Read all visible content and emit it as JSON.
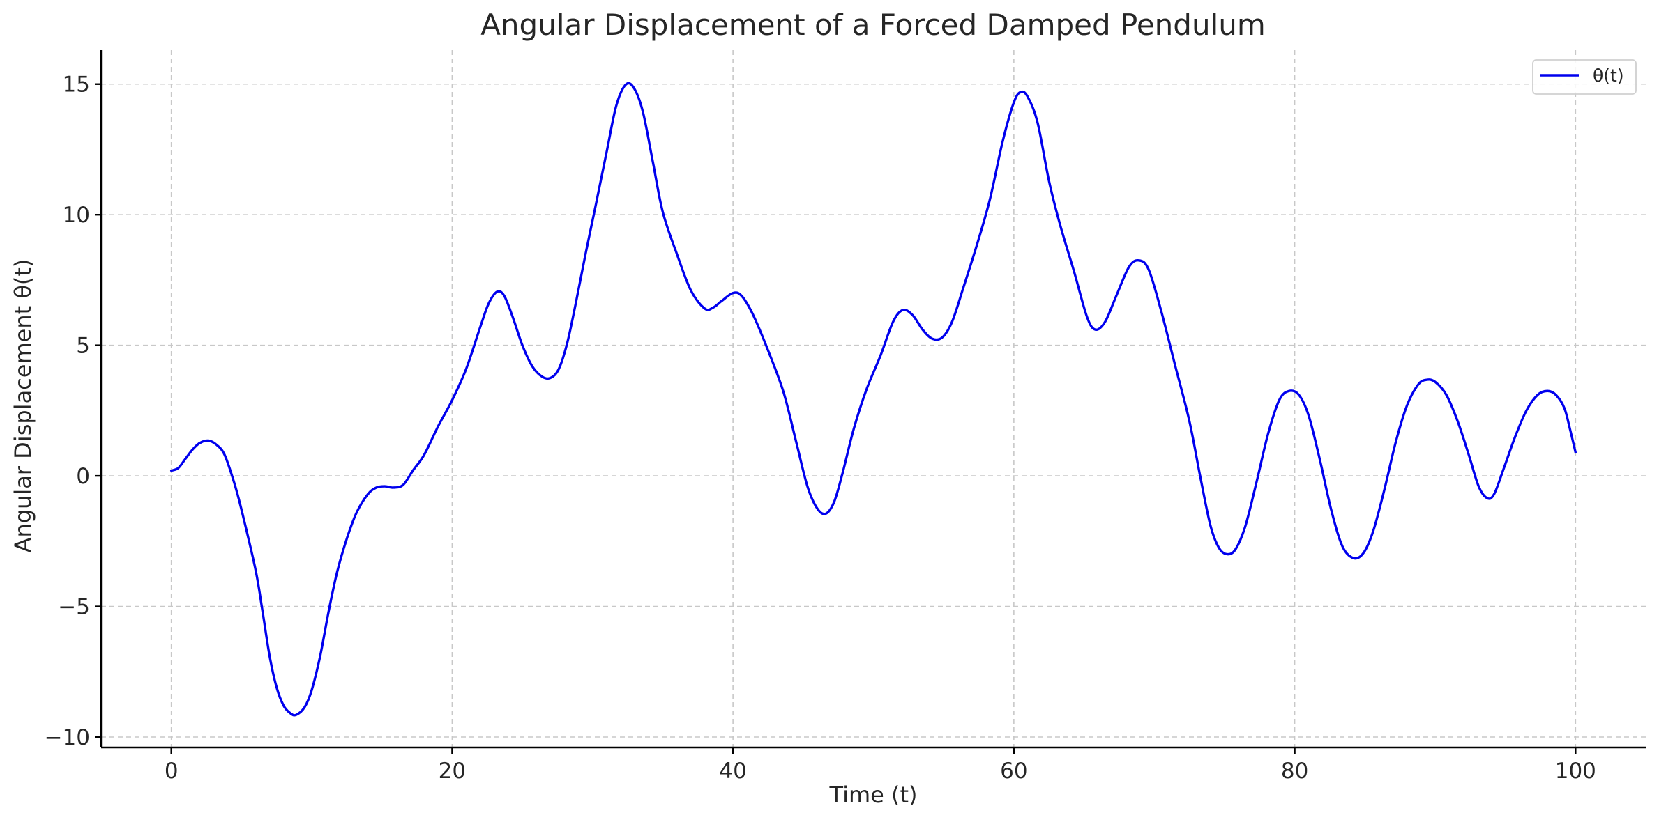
{
  "chart_data": {
    "type": "line",
    "title": "Angular Displacement of a Forced Damped Pendulum",
    "xlabel": "Time (t)",
    "ylabel": "Angular Displacement θ(t)",
    "xlim": [
      -5,
      105
    ],
    "ylim": [
      -10.4,
      16.3
    ],
    "xticks": [
      0,
      20,
      40,
      60,
      80,
      100
    ],
    "yticks": [
      -10,
      -5,
      0,
      5,
      10,
      15
    ],
    "xtick_labels": [
      "0",
      "20",
      "40",
      "60",
      "80",
      "100"
    ],
    "ytick_labels": [
      "−10",
      "−5",
      "0",
      "5",
      "10",
      "15"
    ],
    "grid": true,
    "legend": "top-right",
    "series": [
      {
        "name": "θ(t)",
        "color": "#0000ee",
        "points": [
          [
            0,
            0.2
          ],
          [
            0.5,
            0.3
          ],
          [
            1,
            0.65
          ],
          [
            1.5,
            1.0
          ],
          [
            2,
            1.25
          ],
          [
            2.6,
            1.35
          ],
          [
            3.2,
            1.2
          ],
          [
            3.8,
            0.8
          ],
          [
            4.5,
            -0.3
          ],
          [
            5,
            -1.3
          ],
          [
            6,
            -3.6
          ],
          [
            6.5,
            -5.2
          ],
          [
            7,
            -6.9
          ],
          [
            7.5,
            -8.1
          ],
          [
            8,
            -8.8
          ],
          [
            8.5,
            -9.1
          ],
          [
            8.9,
            -9.15
          ],
          [
            9.5,
            -8.85
          ],
          [
            10,
            -8.2
          ],
          [
            10.6,
            -6.9
          ],
          [
            11.2,
            -5.2
          ],
          [
            11.8,
            -3.7
          ],
          [
            12.5,
            -2.4
          ],
          [
            13.2,
            -1.4
          ],
          [
            14,
            -0.7
          ],
          [
            14.6,
            -0.45
          ],
          [
            15.2,
            -0.4
          ],
          [
            15.8,
            -0.45
          ],
          [
            16.5,
            -0.35
          ],
          [
            17.2,
            0.2
          ],
          [
            18,
            0.8
          ],
          [
            19,
            1.9
          ],
          [
            20,
            2.9
          ],
          [
            21,
            4.1
          ],
          [
            22,
            5.7
          ],
          [
            22.6,
            6.6
          ],
          [
            23.2,
            7.05
          ],
          [
            23.7,
            6.9
          ],
          [
            24.3,
            6.1
          ],
          [
            25,
            5.0
          ],
          [
            25.7,
            4.2
          ],
          [
            26.4,
            3.8
          ],
          [
            27,
            3.75
          ],
          [
            27.6,
            4.1
          ],
          [
            28.2,
            5.1
          ],
          [
            28.8,
            6.6
          ],
          [
            29.5,
            8.5
          ],
          [
            30.2,
            10.3
          ],
          [
            31,
            12.4
          ],
          [
            31.7,
            14.2
          ],
          [
            32.4,
            15.0
          ],
          [
            33,
            14.8
          ],
          [
            33.6,
            13.9
          ],
          [
            34.3,
            12.0
          ],
          [
            35,
            10.1
          ],
          [
            36,
            8.5
          ],
          [
            37,
            7.1
          ],
          [
            38,
            6.4
          ],
          [
            38.6,
            6.45
          ],
          [
            39.2,
            6.7
          ],
          [
            40,
            7.0
          ],
          [
            40.6,
            6.9
          ],
          [
            41.4,
            6.2
          ],
          [
            42.5,
            4.8
          ],
          [
            43.6,
            3.2
          ],
          [
            44.5,
            1.3
          ],
          [
            45.3,
            -0.4
          ],
          [
            46,
            -1.25
          ],
          [
            46.6,
            -1.45
          ],
          [
            47.2,
            -1.0
          ],
          [
            47.8,
            0.1
          ],
          [
            48.6,
            1.8
          ],
          [
            49.5,
            3.3
          ],
          [
            50.5,
            4.6
          ],
          [
            51.4,
            5.9
          ],
          [
            52.1,
            6.35
          ],
          [
            52.8,
            6.15
          ],
          [
            53.5,
            5.6
          ],
          [
            54.2,
            5.25
          ],
          [
            54.9,
            5.3
          ],
          [
            55.6,
            5.9
          ],
          [
            56.4,
            7.2
          ],
          [
            57.4,
            8.9
          ],
          [
            58.3,
            10.6
          ],
          [
            59.2,
            12.8
          ],
          [
            60,
            14.3
          ],
          [
            60.5,
            14.7
          ],
          [
            61,
            14.5
          ],
          [
            61.7,
            13.5
          ],
          [
            62.5,
            11.3
          ],
          [
            63.3,
            9.6
          ],
          [
            64.3,
            7.8
          ],
          [
            65.2,
            6.1
          ],
          [
            65.8,
            5.6
          ],
          [
            66.5,
            5.9
          ],
          [
            67.3,
            6.9
          ],
          [
            68.2,
            8.0
          ],
          [
            68.9,
            8.25
          ],
          [
            69.6,
            7.9
          ],
          [
            70.5,
            6.3
          ],
          [
            71.5,
            4.2
          ],
          [
            72.5,
            2.1
          ],
          [
            73.3,
            -0.1
          ],
          [
            74,
            -1.9
          ],
          [
            74.6,
            -2.75
          ],
          [
            75.2,
            -3.0
          ],
          [
            75.8,
            -2.8
          ],
          [
            76.5,
            -1.9
          ],
          [
            77.3,
            -0.2
          ],
          [
            78.1,
            1.6
          ],
          [
            78.9,
            2.9
          ],
          [
            79.6,
            3.25
          ],
          [
            80.3,
            3.1
          ],
          [
            81,
            2.3
          ],
          [
            81.8,
            0.6
          ],
          [
            82.6,
            -1.3
          ],
          [
            83.4,
            -2.7
          ],
          [
            84.2,
            -3.15
          ],
          [
            84.9,
            -2.95
          ],
          [
            85.6,
            -2.1
          ],
          [
            86.4,
            -0.5
          ],
          [
            87.2,
            1.3
          ],
          [
            88,
            2.7
          ],
          [
            88.8,
            3.5
          ],
          [
            89.4,
            3.68
          ],
          [
            90,
            3.6
          ],
          [
            90.8,
            3.1
          ],
          [
            91.6,
            2.1
          ],
          [
            92.4,
            0.8
          ],
          [
            93.1,
            -0.4
          ],
          [
            93.7,
            -0.85
          ],
          [
            94.2,
            -0.7
          ],
          [
            94.9,
            0.3
          ],
          [
            95.7,
            1.5
          ],
          [
            96.5,
            2.5
          ],
          [
            97.3,
            3.1
          ],
          [
            98,
            3.25
          ],
          [
            98.6,
            3.1
          ],
          [
            99.2,
            2.6
          ],
          [
            99.6,
            1.8
          ],
          [
            100,
            0.9
          ]
        ]
      }
    ]
  }
}
